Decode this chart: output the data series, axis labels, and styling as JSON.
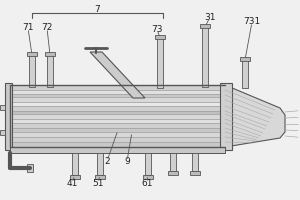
{
  "bg_color": "#f0f0f0",
  "line_color": "#999999",
  "dark_line": "#555555",
  "figsize": [
    3.0,
    2.0
  ],
  "dpi": 100
}
